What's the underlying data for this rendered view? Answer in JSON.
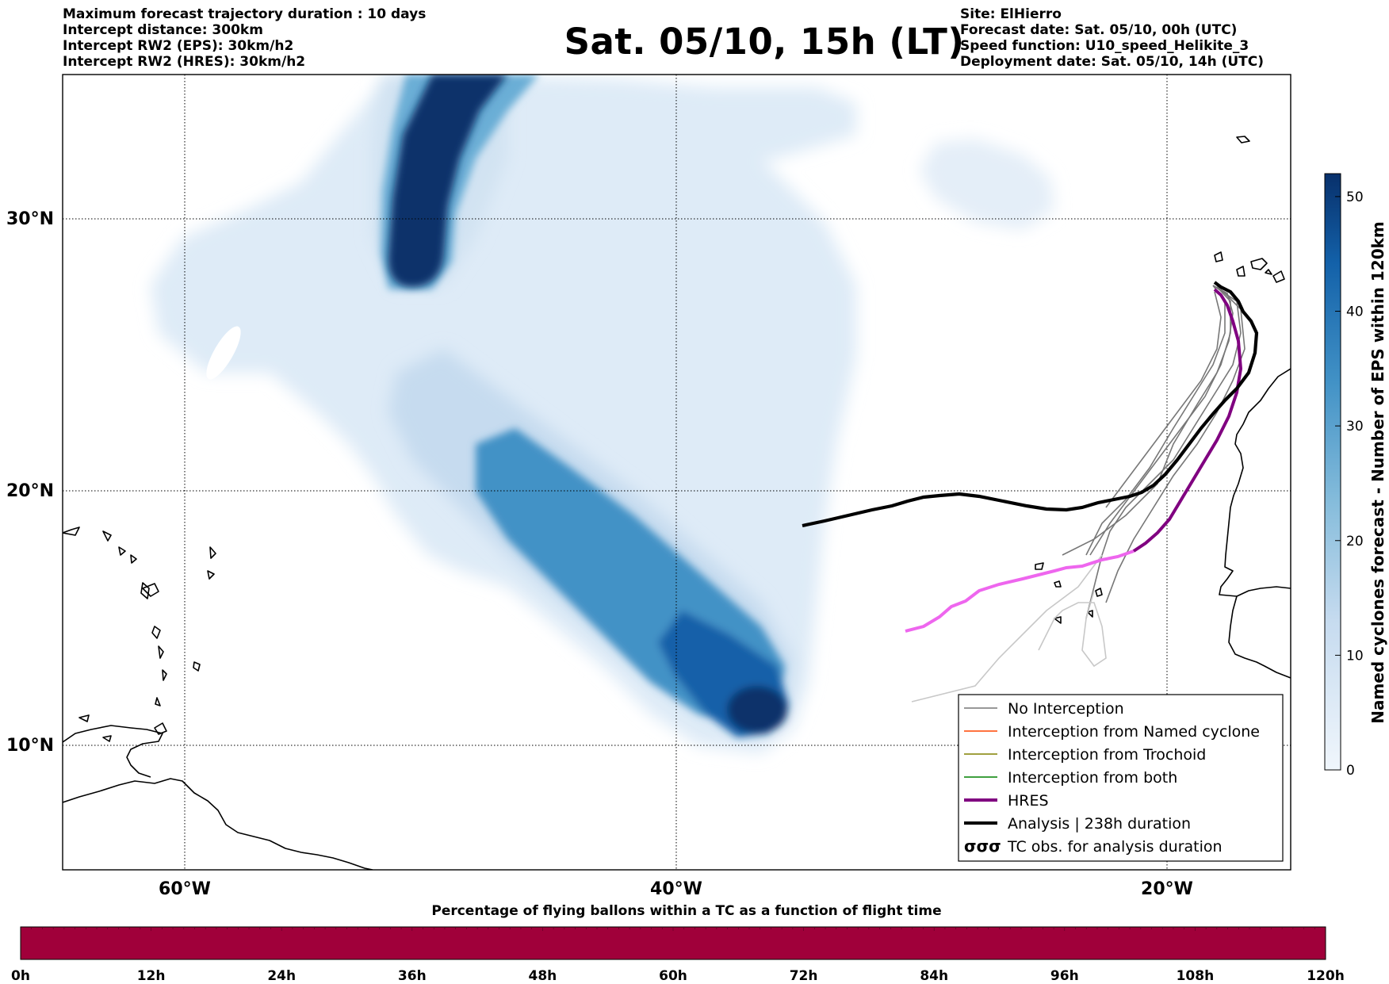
{
  "header": {
    "left_lines": [
      "Maximum forecast trajectory duration : 10 days",
      "Intercept distance: 300km",
      "Intercept RW2 (EPS):  30km/h2",
      "Intercept RW2 (HRES): 30km/h2"
    ],
    "title": "Sat. 05/10, 15h (LT)",
    "right_lines": [
      "Site: ElHierro",
      "Forecast date: Sat. 05/10, 00h (UTC)",
      "Speed function: U10_speed_Helikite_3",
      "Deployment date: Sat. 05/10, 14h (UTC)"
    ]
  },
  "map": {
    "lat_labels": [
      "30°N",
      "20°N",
      "10°N"
    ],
    "lon_labels": [
      "60°W",
      "40°W",
      "20°W"
    ],
    "colors": {
      "density_light": "#deebf7",
      "density_mid": "#6baed6",
      "density_dark": "#08306b",
      "hres": "#800080",
      "hres_past": "#ee66ee",
      "analysis": "#000000",
      "no_interception": "#777777"
    }
  },
  "legend": {
    "items": [
      {
        "label": "No Interception",
        "color": "#777777",
        "style": "thin"
      },
      {
        "label": "Interception from Named cyclone",
        "color": "#ff4500",
        "style": "thin"
      },
      {
        "label": "Interception from Trochoid",
        "color": "#808000",
        "style": "thin"
      },
      {
        "label": "Interception from both",
        "color": "#008000",
        "style": "thin"
      },
      {
        "label": "HRES",
        "color": "#800080",
        "style": "thick"
      },
      {
        "label": "Analysis | 238h duration",
        "color": "#000000",
        "style": "thick"
      },
      {
        "label": "TC obs. for analysis duration",
        "color": "#000000",
        "style": "symbol"
      }
    ]
  },
  "colorbar_right": {
    "label": "Named cyclones forecast - Number of EPS within 120km",
    "ticks": [
      "50",
      "40",
      "30",
      "20",
      "10",
      "0"
    ],
    "color_top": "#08306b",
    "color_bottom": "#f0f6fc"
  },
  "colorbar_bottom": {
    "title": "Percentage of flying ballons within a TC as a function of flight time",
    "color": "#a0003a",
    "ticks": [
      "0h",
      "12h",
      "24h",
      "36h",
      "48h",
      "60h",
      "72h",
      "84h",
      "96h",
      "108h",
      "120h"
    ]
  }
}
